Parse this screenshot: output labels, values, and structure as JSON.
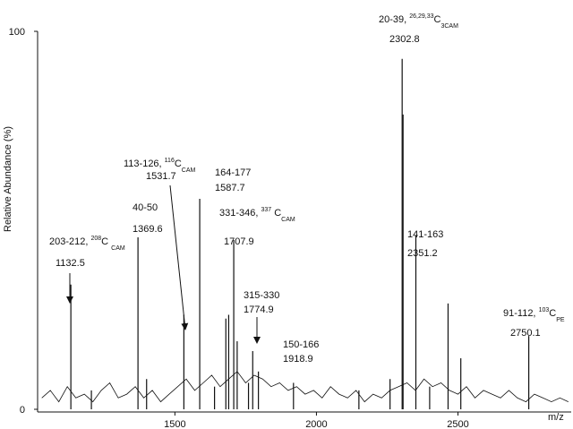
{
  "chart_data": {
    "type": "spectrum",
    "y_label": "Relative Abundance (%)",
    "x_label": "m/z",
    "xlim": [
      1015,
      2900
    ],
    "ylim": [
      0,
      100
    ],
    "xticks": [
      1500,
      2000,
      2500
    ],
    "yticks": [
      0,
      100
    ],
    "color": "#111111",
    "peaks": {
      "x": [
        1132.5,
        1205,
        1369.6,
        1400,
        1531.7,
        1587.7,
        1640,
        1680,
        1690,
        1707.9,
        1720,
        1760,
        1774.9,
        1795,
        1918.9,
        2150,
        2260,
        2302.8,
        2306,
        2351.2,
        2400,
        2465,
        2510,
        2750.1
      ],
      "values": [
        33,
        5,
        45.5,
        8,
        25,
        55.7,
        6,
        24,
        25,
        44.8,
        18,
        7,
        15.4,
        10,
        7,
        5,
        8,
        92.7,
        78,
        46,
        6,
        28,
        13.5,
        19.4
      ]
    },
    "baseline": {
      "x": [
        1030,
        1060,
        1090,
        1120,
        1150,
        1180,
        1210,
        1240,
        1270,
        1300,
        1330,
        1360,
        1390,
        1420,
        1450,
        1480,
        1510,
        1540,
        1570,
        1600,
        1630,
        1660,
        1690,
        1720,
        1750,
        1780,
        1810,
        1840,
        1870,
        1900,
        1930,
        1960,
        1990,
        2020,
        2050,
        2080,
        2110,
        2140,
        2170,
        2200,
        2230,
        2260,
        2290,
        2320,
        2350,
        2380,
        2410,
        2440,
        2470,
        2500,
        2530,
        2560,
        2590,
        2620,
        2650,
        2680,
        2710,
        2740,
        2770,
        2800,
        2830,
        2860,
        2890
      ],
      "values": [
        3,
        5,
        2,
        6,
        3,
        4,
        2,
        5,
        7,
        3,
        4,
        6,
        3,
        5,
        2,
        4,
        6,
        8,
        5,
        7,
        9,
        6,
        8,
        10,
        7,
        9,
        8,
        6,
        7,
        5,
        6,
        4,
        5,
        3,
        6,
        4,
        3,
        5,
        2,
        4,
        3,
        5,
        6,
        7,
        5,
        8,
        6,
        7,
        5,
        4,
        6,
        3,
        5,
        4,
        3,
        5,
        3,
        2,
        4,
        3,
        2,
        3,
        2
      ]
    },
    "annotations": [
      {
        "text": [
          {
            "text": "203-212, "
          },
          {
            "sup": "208"
          },
          {
            "text": "C "
          },
          {
            "sub": "CAM"
          }
        ],
        "mz": 1132.5
      },
      {
        "text": [
          {
            "text": "40-50"
          }
        ],
        "mz": 1369.6
      },
      {
        "text": [
          {
            "text": "113-126, "
          },
          {
            "sup": "116"
          },
          {
            "text": "C"
          },
          {
            "sub": "CAM"
          }
        ],
        "mz": 1531.7
      },
      {
        "text": [
          {
            "text": "164-177"
          }
        ],
        "mz": 1587.7
      },
      {
        "text": [
          {
            "text": "331-346, "
          },
          {
            "sup": "337"
          },
          {
            "text": " C"
          },
          {
            "sub": "CAM"
          }
        ],
        "mz": 1707.9
      },
      {
        "text": [
          {
            "text": "315-330"
          }
        ],
        "mz": 1774.9
      },
      {
        "text": [
          {
            "text": "150-166"
          }
        ],
        "mz": 1918.9
      },
      {
        "text": [
          {
            "text": "20-39, "
          },
          {
            "sup": "26,29,33"
          },
          {
            "text": "C"
          },
          {
            "sub": "3CAM"
          }
        ],
        "mz": 2302.8
      },
      {
        "text": [
          {
            "text": "141-163"
          }
        ],
        "mz": 2351.2
      },
      {
        "text": [
          {
            "text": "91-112, "
          },
          {
            "sup": "103"
          },
          {
            "text": "C"
          },
          {
            "sub": "PE"
          }
        ],
        "mz": 2750.1
      }
    ]
  }
}
